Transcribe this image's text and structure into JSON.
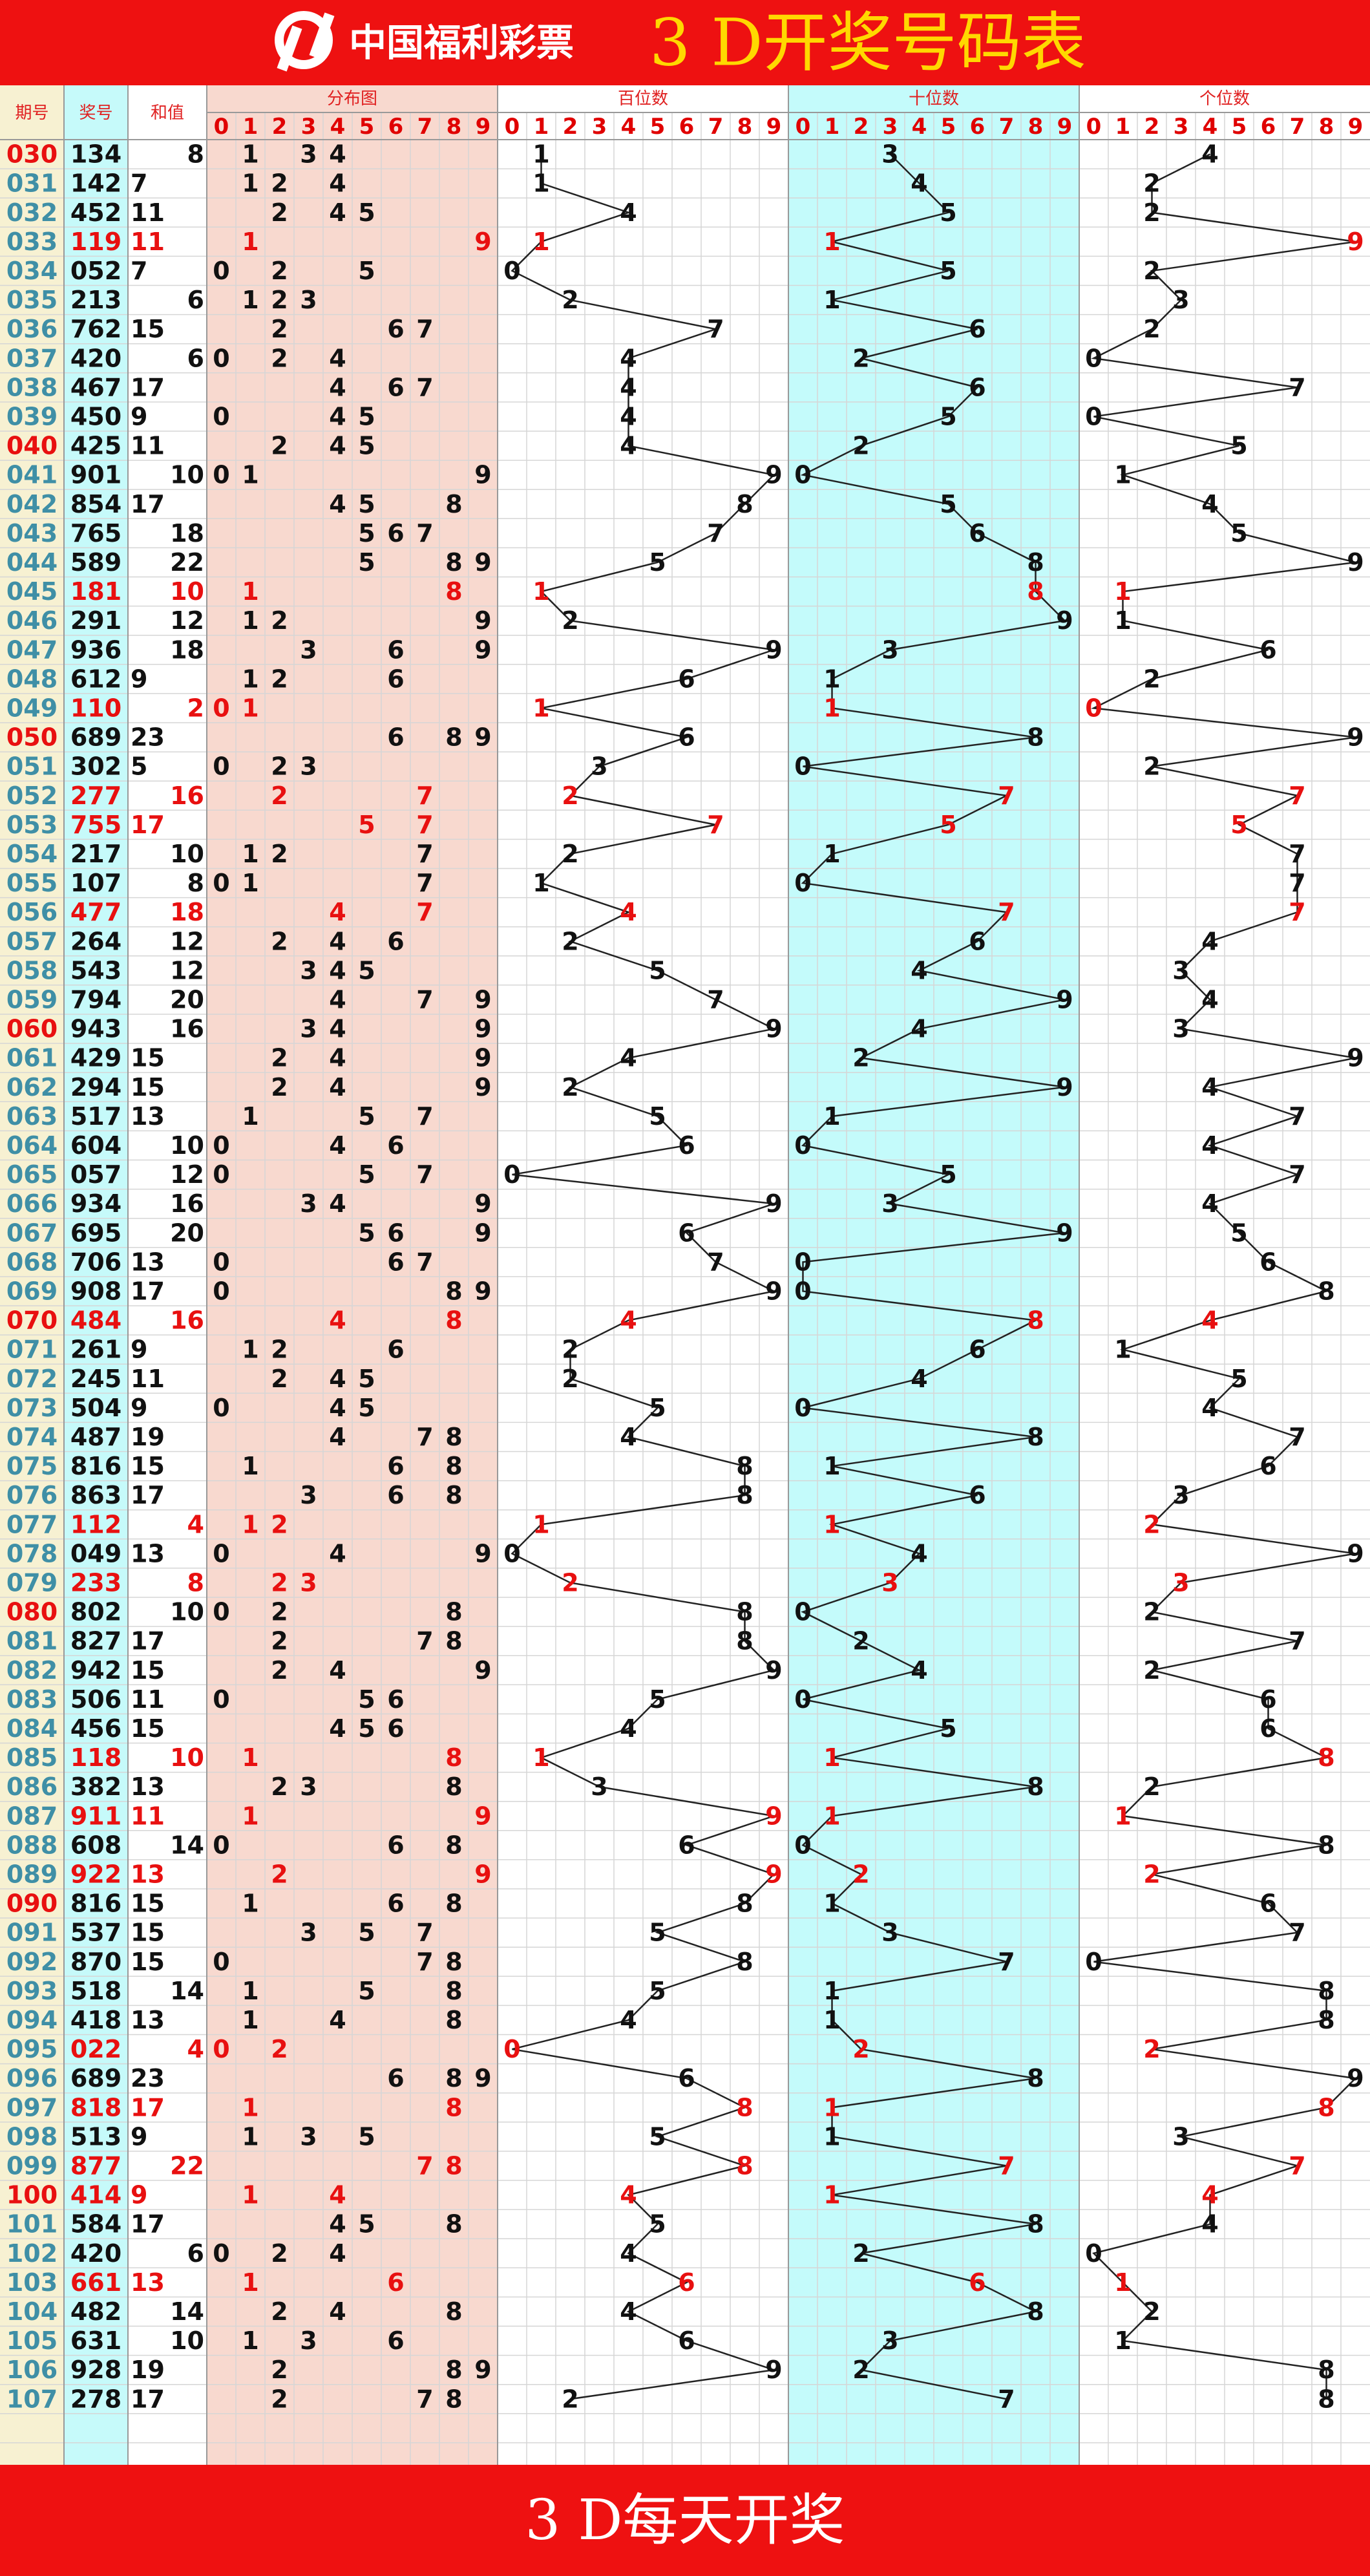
{
  "header": {
    "logo": "中国福利彩票",
    "title": "3 D开奖号码表"
  },
  "columns": {
    "period": "期号",
    "number": "奖号",
    "sum": "和值",
    "distribution": "分布图",
    "hundreds": "百位数",
    "tens": "十位数",
    "units": "个位数"
  },
  "digit_headers": [
    0,
    1,
    2,
    3,
    4,
    5,
    6,
    7,
    8,
    9
  ],
  "rows": [
    {
      "period": "030",
      "number": [
        1,
        3,
        4
      ],
      "sum": 8
    },
    {
      "period": "031",
      "number": [
        1,
        4,
        2
      ],
      "sum": 7
    },
    {
      "period": "032",
      "number": [
        4,
        5,
        2
      ],
      "sum": 11
    },
    {
      "period": "033",
      "number": [
        1,
        1,
        9
      ],
      "sum": 11
    },
    {
      "period": "034",
      "number": [
        0,
        5,
        2
      ],
      "sum": 7
    },
    {
      "period": "035",
      "number": [
        2,
        1,
        3
      ],
      "sum": 6
    },
    {
      "period": "036",
      "number": [
        7,
        6,
        2
      ],
      "sum": 15
    },
    {
      "period": "037",
      "number": [
        4,
        2,
        0
      ],
      "sum": 6
    },
    {
      "period": "038",
      "number": [
        4,
        6,
        7
      ],
      "sum": 17
    },
    {
      "period": "039",
      "number": [
        4,
        5,
        0
      ],
      "sum": 9
    },
    {
      "period": "040",
      "number": [
        4,
        2,
        5
      ],
      "sum": 11
    },
    {
      "period": "041",
      "number": [
        9,
        0,
        1
      ],
      "sum": 10
    },
    {
      "period": "042",
      "number": [
        8,
        5,
        4
      ],
      "sum": 17
    },
    {
      "period": "043",
      "number": [
        7,
        6,
        5
      ],
      "sum": 18
    },
    {
      "period": "044",
      "number": [
        5,
        8,
        9
      ],
      "sum": 22
    },
    {
      "period": "045",
      "number": [
        1,
        8,
        1
      ],
      "sum": 10
    },
    {
      "period": "046",
      "number": [
        2,
        9,
        1
      ],
      "sum": 12
    },
    {
      "period": "047",
      "number": [
        9,
        3,
        6
      ],
      "sum": 18
    },
    {
      "period": "048",
      "number": [
        6,
        1,
        2
      ],
      "sum": 9
    },
    {
      "period": "049",
      "number": [
        1,
        1,
        0
      ],
      "sum": 2
    },
    {
      "period": "050",
      "number": [
        6,
        8,
        9
      ],
      "sum": 23
    },
    {
      "period": "051",
      "number": [
        3,
        0,
        2
      ],
      "sum": 5
    },
    {
      "period": "052",
      "number": [
        2,
        7,
        7
      ],
      "sum": 16
    },
    {
      "period": "053",
      "number": [
        7,
        5,
        5
      ],
      "sum": 17
    },
    {
      "period": "054",
      "number": [
        2,
        1,
        7
      ],
      "sum": 10
    },
    {
      "period": "055",
      "number": [
        1,
        0,
        7
      ],
      "sum": 8
    },
    {
      "period": "056",
      "number": [
        4,
        7,
        7
      ],
      "sum": 18
    },
    {
      "period": "057",
      "number": [
        2,
        6,
        4
      ],
      "sum": 12
    },
    {
      "period": "058",
      "number": [
        5,
        4,
        3
      ],
      "sum": 12
    },
    {
      "period": "059",
      "number": [
        7,
        9,
        4
      ],
      "sum": 20
    },
    {
      "period": "060",
      "number": [
        9,
        4,
        3
      ],
      "sum": 16
    },
    {
      "period": "061",
      "number": [
        4,
        2,
        9
      ],
      "sum": 15
    },
    {
      "period": "062",
      "number": [
        2,
        9,
        4
      ],
      "sum": 15
    },
    {
      "period": "063",
      "number": [
        5,
        1,
        7
      ],
      "sum": 13
    },
    {
      "period": "064",
      "number": [
        6,
        0,
        4
      ],
      "sum": 10
    },
    {
      "period": "065",
      "number": [
        0,
        5,
        7
      ],
      "sum": 12
    },
    {
      "period": "066",
      "number": [
        9,
        3,
        4
      ],
      "sum": 16
    },
    {
      "period": "067",
      "number": [
        6,
        9,
        5
      ],
      "sum": 20
    },
    {
      "period": "068",
      "number": [
        7,
        0,
        6
      ],
      "sum": 13
    },
    {
      "period": "069",
      "number": [
        9,
        0,
        8
      ],
      "sum": 17
    },
    {
      "period": "070",
      "number": [
        4,
        8,
        4
      ],
      "sum": 16
    },
    {
      "period": "071",
      "number": [
        2,
        6,
        1
      ],
      "sum": 9
    },
    {
      "period": "072",
      "number": [
        2,
        4,
        5
      ],
      "sum": 11
    },
    {
      "period": "073",
      "number": [
        5,
        0,
        4
      ],
      "sum": 9
    },
    {
      "period": "074",
      "number": [
        4,
        8,
        7
      ],
      "sum": 19
    },
    {
      "period": "075",
      "number": [
        8,
        1,
        6
      ],
      "sum": 15
    },
    {
      "period": "076",
      "number": [
        8,
        6,
        3
      ],
      "sum": 17
    },
    {
      "period": "077",
      "number": [
        1,
        1,
        2
      ],
      "sum": 4
    },
    {
      "period": "078",
      "number": [
        0,
        4,
        9
      ],
      "sum": 13
    },
    {
      "period": "079",
      "number": [
        2,
        3,
        3
      ],
      "sum": 8
    },
    {
      "period": "080",
      "number": [
        8,
        0,
        2
      ],
      "sum": 10
    },
    {
      "period": "081",
      "number": [
        8,
        2,
        7
      ],
      "sum": 17
    },
    {
      "period": "082",
      "number": [
        9,
        4,
        2
      ],
      "sum": 15
    },
    {
      "period": "083",
      "number": [
        5,
        0,
        6
      ],
      "sum": 11
    },
    {
      "period": "084",
      "number": [
        4,
        5,
        6
      ],
      "sum": 15
    },
    {
      "period": "085",
      "number": [
        1,
        1,
        8
      ],
      "sum": 10
    },
    {
      "period": "086",
      "number": [
        3,
        8,
        2
      ],
      "sum": 13
    },
    {
      "period": "087",
      "number": [
        9,
        1,
        1
      ],
      "sum": 11
    },
    {
      "period": "088",
      "number": [
        6,
        0,
        8
      ],
      "sum": 14
    },
    {
      "period": "089",
      "number": [
        9,
        2,
        2
      ],
      "sum": 13
    },
    {
      "period": "090",
      "number": [
        8,
        1,
        6
      ],
      "sum": 15
    },
    {
      "period": "091",
      "number": [
        5,
        3,
        7
      ],
      "sum": 15
    },
    {
      "period": "092",
      "number": [
        8,
        7,
        0
      ],
      "sum": 15
    },
    {
      "period": "093",
      "number": [
        5,
        1,
        8
      ],
      "sum": 14
    },
    {
      "period": "094",
      "number": [
        4,
        1,
        8
      ],
      "sum": 13
    },
    {
      "period": "095",
      "number": [
        0,
        2,
        2
      ],
      "sum": 4
    },
    {
      "period": "096",
      "number": [
        6,
        8,
        9
      ],
      "sum": 23
    },
    {
      "period": "097",
      "number": [
        8,
        1,
        8
      ],
      "sum": 17
    },
    {
      "period": "098",
      "number": [
        5,
        1,
        3
      ],
      "sum": 9
    },
    {
      "period": "099",
      "number": [
        8,
        7,
        7
      ],
      "sum": 22
    },
    {
      "period": "100",
      "number": [
        4,
        1,
        4
      ],
      "sum": 9
    },
    {
      "period": "101",
      "number": [
        5,
        8,
        4
      ],
      "sum": 17
    },
    {
      "period": "102",
      "number": [
        4,
        2,
        0
      ],
      "sum": 6
    },
    {
      "period": "103",
      "number": [
        6,
        6,
        1
      ],
      "sum": 13
    },
    {
      "period": "104",
      "number": [
        4,
        8,
        2
      ],
      "sum": 14
    },
    {
      "period": "105",
      "number": [
        6,
        3,
        1
      ],
      "sum": 10
    },
    {
      "period": "106",
      "number": [
        9,
        2,
        8
      ],
      "sum": 19
    },
    {
      "period": "107",
      "number": [
        2,
        7,
        8
      ],
      "sum": 17
    }
  ],
  "footer": "3 D每天开奖"
}
